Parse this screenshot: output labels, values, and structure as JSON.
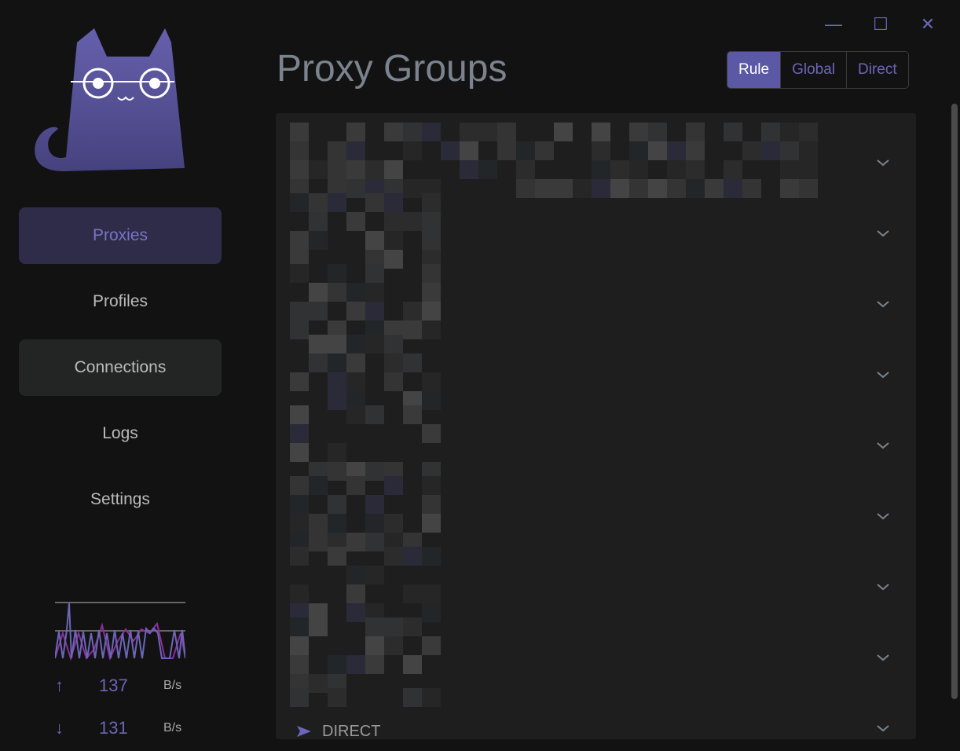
{
  "window": {
    "minimize_icon": "minimize-icon",
    "maximize_icon": "maximize-icon",
    "close_icon": "close-icon"
  },
  "sidebar": {
    "items": [
      {
        "label": "Proxies",
        "state": "active"
      },
      {
        "label": "Profiles"
      },
      {
        "label": "Connections",
        "state": "hover"
      },
      {
        "label": "Logs"
      },
      {
        "label": "Settings"
      }
    ],
    "traffic": {
      "upload": "137",
      "download": "131",
      "unit": "B/s",
      "upload_color": "#6b66b8",
      "download_color": "#8e2d9c"
    }
  },
  "header": {
    "title": "Proxy Groups",
    "modes": [
      {
        "label": "Rule",
        "selected": true
      },
      {
        "label": "Global"
      },
      {
        "label": "Direct"
      }
    ]
  },
  "groups": {
    "count_visible": 9,
    "last_selected": "DIRECT",
    "accent": "#5b58a6"
  }
}
